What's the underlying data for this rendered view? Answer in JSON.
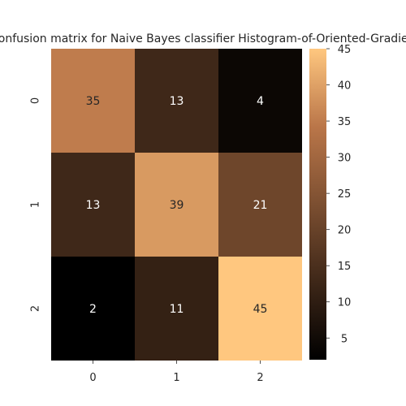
{
  "chart_data": {
    "type": "heatmap",
    "title": "Confusion matrix for Naive Bayes classifier    Histogram-of-Oriented-Gradients",
    "xlabel": "",
    "ylabel": "",
    "x_categories": [
      "0",
      "1",
      "2"
    ],
    "y_categories": [
      "0",
      "1",
      "2"
    ],
    "values": [
      [
        35,
        13,
        4
      ],
      [
        13,
        39,
        21
      ],
      [
        2,
        11,
        45
      ]
    ],
    "colorbar": {
      "min": 2,
      "max": 45,
      "ticks": [
        5,
        10,
        15,
        20,
        25,
        30,
        35,
        40,
        45
      ]
    },
    "colormap": "copper",
    "grid": false
  }
}
